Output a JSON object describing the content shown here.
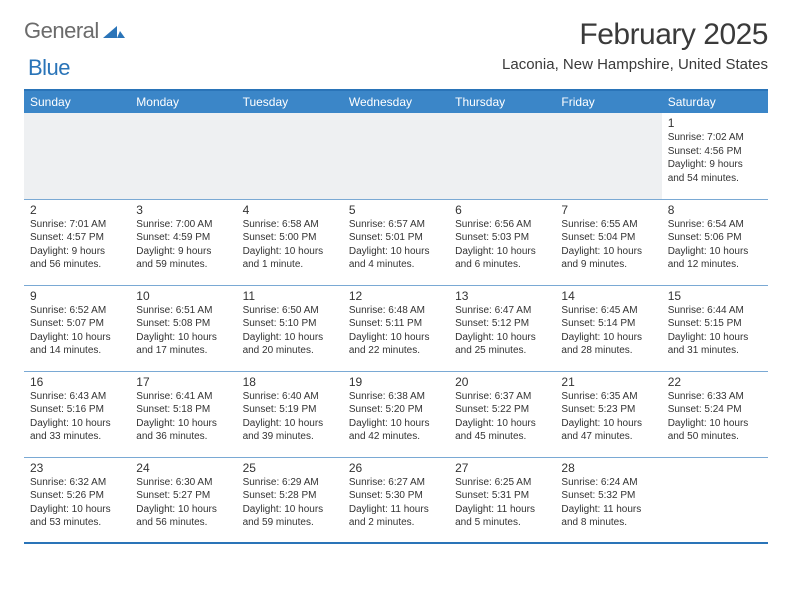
{
  "logo": {
    "word1": "General",
    "word2": "Blue",
    "accent_color": "#2a74b8",
    "gray_color": "#6b6b6b"
  },
  "title": "February 2025",
  "location": "Laconia, New Hampshire, United States",
  "header_bg": "#3b86c8",
  "border_color": "#2a74b8",
  "row_divider": "#7aa9d4",
  "empty_bg": "#eef0f2",
  "day_names": [
    "Sunday",
    "Monday",
    "Tuesday",
    "Wednesday",
    "Thursday",
    "Friday",
    "Saturday"
  ],
  "weeks": [
    [
      {
        "n": "",
        "sr": "",
        "ss": "",
        "dl": ""
      },
      {
        "n": "",
        "sr": "",
        "ss": "",
        "dl": ""
      },
      {
        "n": "",
        "sr": "",
        "ss": "",
        "dl": ""
      },
      {
        "n": "",
        "sr": "",
        "ss": "",
        "dl": ""
      },
      {
        "n": "",
        "sr": "",
        "ss": "",
        "dl": ""
      },
      {
        "n": "",
        "sr": "",
        "ss": "",
        "dl": ""
      },
      {
        "n": "1",
        "sr": "Sunrise: 7:02 AM",
        "ss": "Sunset: 4:56 PM",
        "dl": "Daylight: 9 hours and 54 minutes."
      }
    ],
    [
      {
        "n": "2",
        "sr": "Sunrise: 7:01 AM",
        "ss": "Sunset: 4:57 PM",
        "dl": "Daylight: 9 hours and 56 minutes."
      },
      {
        "n": "3",
        "sr": "Sunrise: 7:00 AM",
        "ss": "Sunset: 4:59 PM",
        "dl": "Daylight: 9 hours and 59 minutes."
      },
      {
        "n": "4",
        "sr": "Sunrise: 6:58 AM",
        "ss": "Sunset: 5:00 PM",
        "dl": "Daylight: 10 hours and 1 minute."
      },
      {
        "n": "5",
        "sr": "Sunrise: 6:57 AM",
        "ss": "Sunset: 5:01 PM",
        "dl": "Daylight: 10 hours and 4 minutes."
      },
      {
        "n": "6",
        "sr": "Sunrise: 6:56 AM",
        "ss": "Sunset: 5:03 PM",
        "dl": "Daylight: 10 hours and 6 minutes."
      },
      {
        "n": "7",
        "sr": "Sunrise: 6:55 AM",
        "ss": "Sunset: 5:04 PM",
        "dl": "Daylight: 10 hours and 9 minutes."
      },
      {
        "n": "8",
        "sr": "Sunrise: 6:54 AM",
        "ss": "Sunset: 5:06 PM",
        "dl": "Daylight: 10 hours and 12 minutes."
      }
    ],
    [
      {
        "n": "9",
        "sr": "Sunrise: 6:52 AM",
        "ss": "Sunset: 5:07 PM",
        "dl": "Daylight: 10 hours and 14 minutes."
      },
      {
        "n": "10",
        "sr": "Sunrise: 6:51 AM",
        "ss": "Sunset: 5:08 PM",
        "dl": "Daylight: 10 hours and 17 minutes."
      },
      {
        "n": "11",
        "sr": "Sunrise: 6:50 AM",
        "ss": "Sunset: 5:10 PM",
        "dl": "Daylight: 10 hours and 20 minutes."
      },
      {
        "n": "12",
        "sr": "Sunrise: 6:48 AM",
        "ss": "Sunset: 5:11 PM",
        "dl": "Daylight: 10 hours and 22 minutes."
      },
      {
        "n": "13",
        "sr": "Sunrise: 6:47 AM",
        "ss": "Sunset: 5:12 PM",
        "dl": "Daylight: 10 hours and 25 minutes."
      },
      {
        "n": "14",
        "sr": "Sunrise: 6:45 AM",
        "ss": "Sunset: 5:14 PM",
        "dl": "Daylight: 10 hours and 28 minutes."
      },
      {
        "n": "15",
        "sr": "Sunrise: 6:44 AM",
        "ss": "Sunset: 5:15 PM",
        "dl": "Daylight: 10 hours and 31 minutes."
      }
    ],
    [
      {
        "n": "16",
        "sr": "Sunrise: 6:43 AM",
        "ss": "Sunset: 5:16 PM",
        "dl": "Daylight: 10 hours and 33 minutes."
      },
      {
        "n": "17",
        "sr": "Sunrise: 6:41 AM",
        "ss": "Sunset: 5:18 PM",
        "dl": "Daylight: 10 hours and 36 minutes."
      },
      {
        "n": "18",
        "sr": "Sunrise: 6:40 AM",
        "ss": "Sunset: 5:19 PM",
        "dl": "Daylight: 10 hours and 39 minutes."
      },
      {
        "n": "19",
        "sr": "Sunrise: 6:38 AM",
        "ss": "Sunset: 5:20 PM",
        "dl": "Daylight: 10 hours and 42 minutes."
      },
      {
        "n": "20",
        "sr": "Sunrise: 6:37 AM",
        "ss": "Sunset: 5:22 PM",
        "dl": "Daylight: 10 hours and 45 minutes."
      },
      {
        "n": "21",
        "sr": "Sunrise: 6:35 AM",
        "ss": "Sunset: 5:23 PM",
        "dl": "Daylight: 10 hours and 47 minutes."
      },
      {
        "n": "22",
        "sr": "Sunrise: 6:33 AM",
        "ss": "Sunset: 5:24 PM",
        "dl": "Daylight: 10 hours and 50 minutes."
      }
    ],
    [
      {
        "n": "23",
        "sr": "Sunrise: 6:32 AM",
        "ss": "Sunset: 5:26 PM",
        "dl": "Daylight: 10 hours and 53 minutes."
      },
      {
        "n": "24",
        "sr": "Sunrise: 6:30 AM",
        "ss": "Sunset: 5:27 PM",
        "dl": "Daylight: 10 hours and 56 minutes."
      },
      {
        "n": "25",
        "sr": "Sunrise: 6:29 AM",
        "ss": "Sunset: 5:28 PM",
        "dl": "Daylight: 10 hours and 59 minutes."
      },
      {
        "n": "26",
        "sr": "Sunrise: 6:27 AM",
        "ss": "Sunset: 5:30 PM",
        "dl": "Daylight: 11 hours and 2 minutes."
      },
      {
        "n": "27",
        "sr": "Sunrise: 6:25 AM",
        "ss": "Sunset: 5:31 PM",
        "dl": "Daylight: 11 hours and 5 minutes."
      },
      {
        "n": "28",
        "sr": "Sunrise: 6:24 AM",
        "ss": "Sunset: 5:32 PM",
        "dl": "Daylight: 11 hours and 8 minutes."
      },
      {
        "n": "",
        "sr": "",
        "ss": "",
        "dl": ""
      }
    ]
  ]
}
